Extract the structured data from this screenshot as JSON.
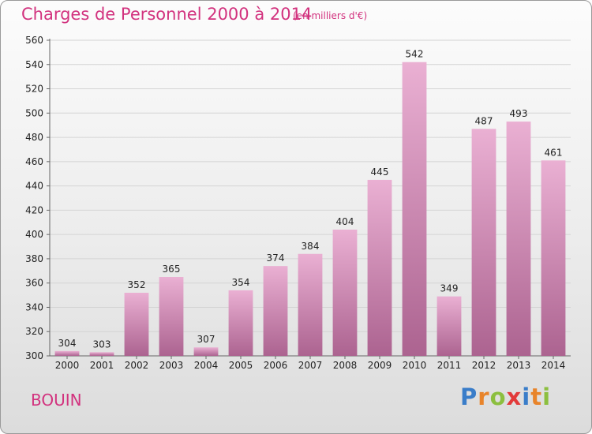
{
  "header": {
    "title": "Charges de Personnel 2000 à 2014",
    "subtitle": "(en milliers d'€)"
  },
  "footer": {
    "place": "BOUIN",
    "logo": [
      "P",
      "r",
      "o",
      "x",
      "i",
      "t",
      "i"
    ]
  },
  "colors": {
    "title": "#d2327e",
    "bar_light": "#eab0d3",
    "bar_dark": "#ac6390",
    "logo": [
      "#3a7dc9",
      "#e8842a",
      "#8cbf3f",
      "#e23a3a",
      "#3a7dc9",
      "#e8842a",
      "#8cbf3f"
    ]
  },
  "chart_data": {
    "type": "bar",
    "categories": [
      "2000",
      "2001",
      "2002",
      "2003",
      "2004",
      "2005",
      "2006",
      "2007",
      "2008",
      "2009",
      "2010",
      "2011",
      "2012",
      "2013",
      "2014"
    ],
    "values": [
      304,
      303,
      352,
      365,
      307,
      354,
      374,
      384,
      404,
      445,
      542,
      349,
      487,
      493,
      461
    ],
    "ylim": [
      300,
      560
    ],
    "yticks": [
      300,
      320,
      340,
      360,
      380,
      400,
      420,
      440,
      460,
      480,
      500,
      520,
      540,
      560
    ],
    "grid": true,
    "xlabel": "",
    "ylabel": ""
  }
}
